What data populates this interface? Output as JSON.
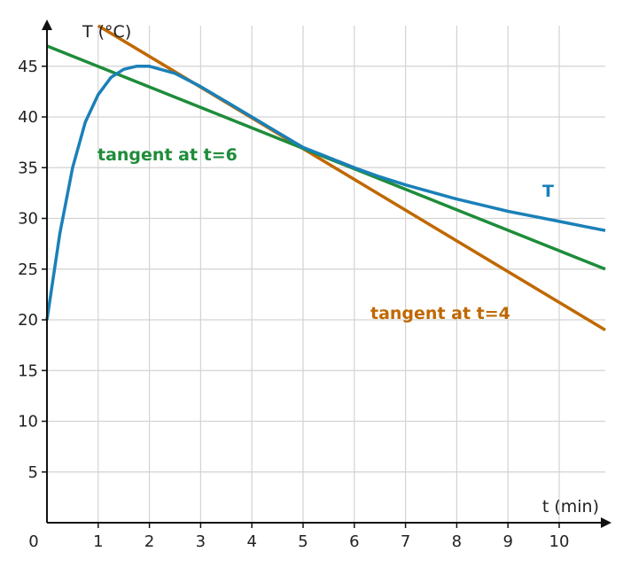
{
  "chart_data": {
    "type": "line",
    "xlabel": "t (min)",
    "ylabel": "T (°C)",
    "origin_label": "0",
    "xlim": [
      0,
      10.9
    ],
    "ylim": [
      0,
      49
    ],
    "x_ticks": [
      1,
      2,
      3,
      4,
      5,
      6,
      7,
      8,
      9,
      10
    ],
    "y_ticks": [
      5,
      10,
      15,
      20,
      25,
      30,
      35,
      40,
      45
    ],
    "grid": true,
    "series": [
      {
        "name": "T",
        "color": "#1a80b8",
        "x": [
          0,
          0.25,
          0.5,
          0.75,
          1,
          1.25,
          1.5,
          1.75,
          2,
          2.5,
          3,
          3.5,
          4,
          4.5,
          5,
          5.5,
          6,
          6.5,
          7,
          7.5,
          8,
          8.5,
          9,
          9.5,
          10,
          10.5,
          10.9
        ],
        "y": [
          20,
          28.5,
          35,
          39.5,
          42.2,
          43.9,
          44.7,
          45,
          45,
          44.3,
          43,
          41.5,
          40,
          38.5,
          37,
          36,
          35,
          34.1,
          33.3,
          32.6,
          31.9,
          31.3,
          30.7,
          30.2,
          29.7,
          29.2,
          28.8
        ]
      },
      {
        "name": "tangent at t=4",
        "color": "#c06800",
        "x": [
          1,
          10.9
        ],
        "y": [
          49,
          19
        ]
      },
      {
        "name": "tangent at t=6",
        "color": "#1e8c3a",
        "x": [
          0,
          10.9
        ],
        "y": [
          47,
          25
        ]
      }
    ]
  }
}
